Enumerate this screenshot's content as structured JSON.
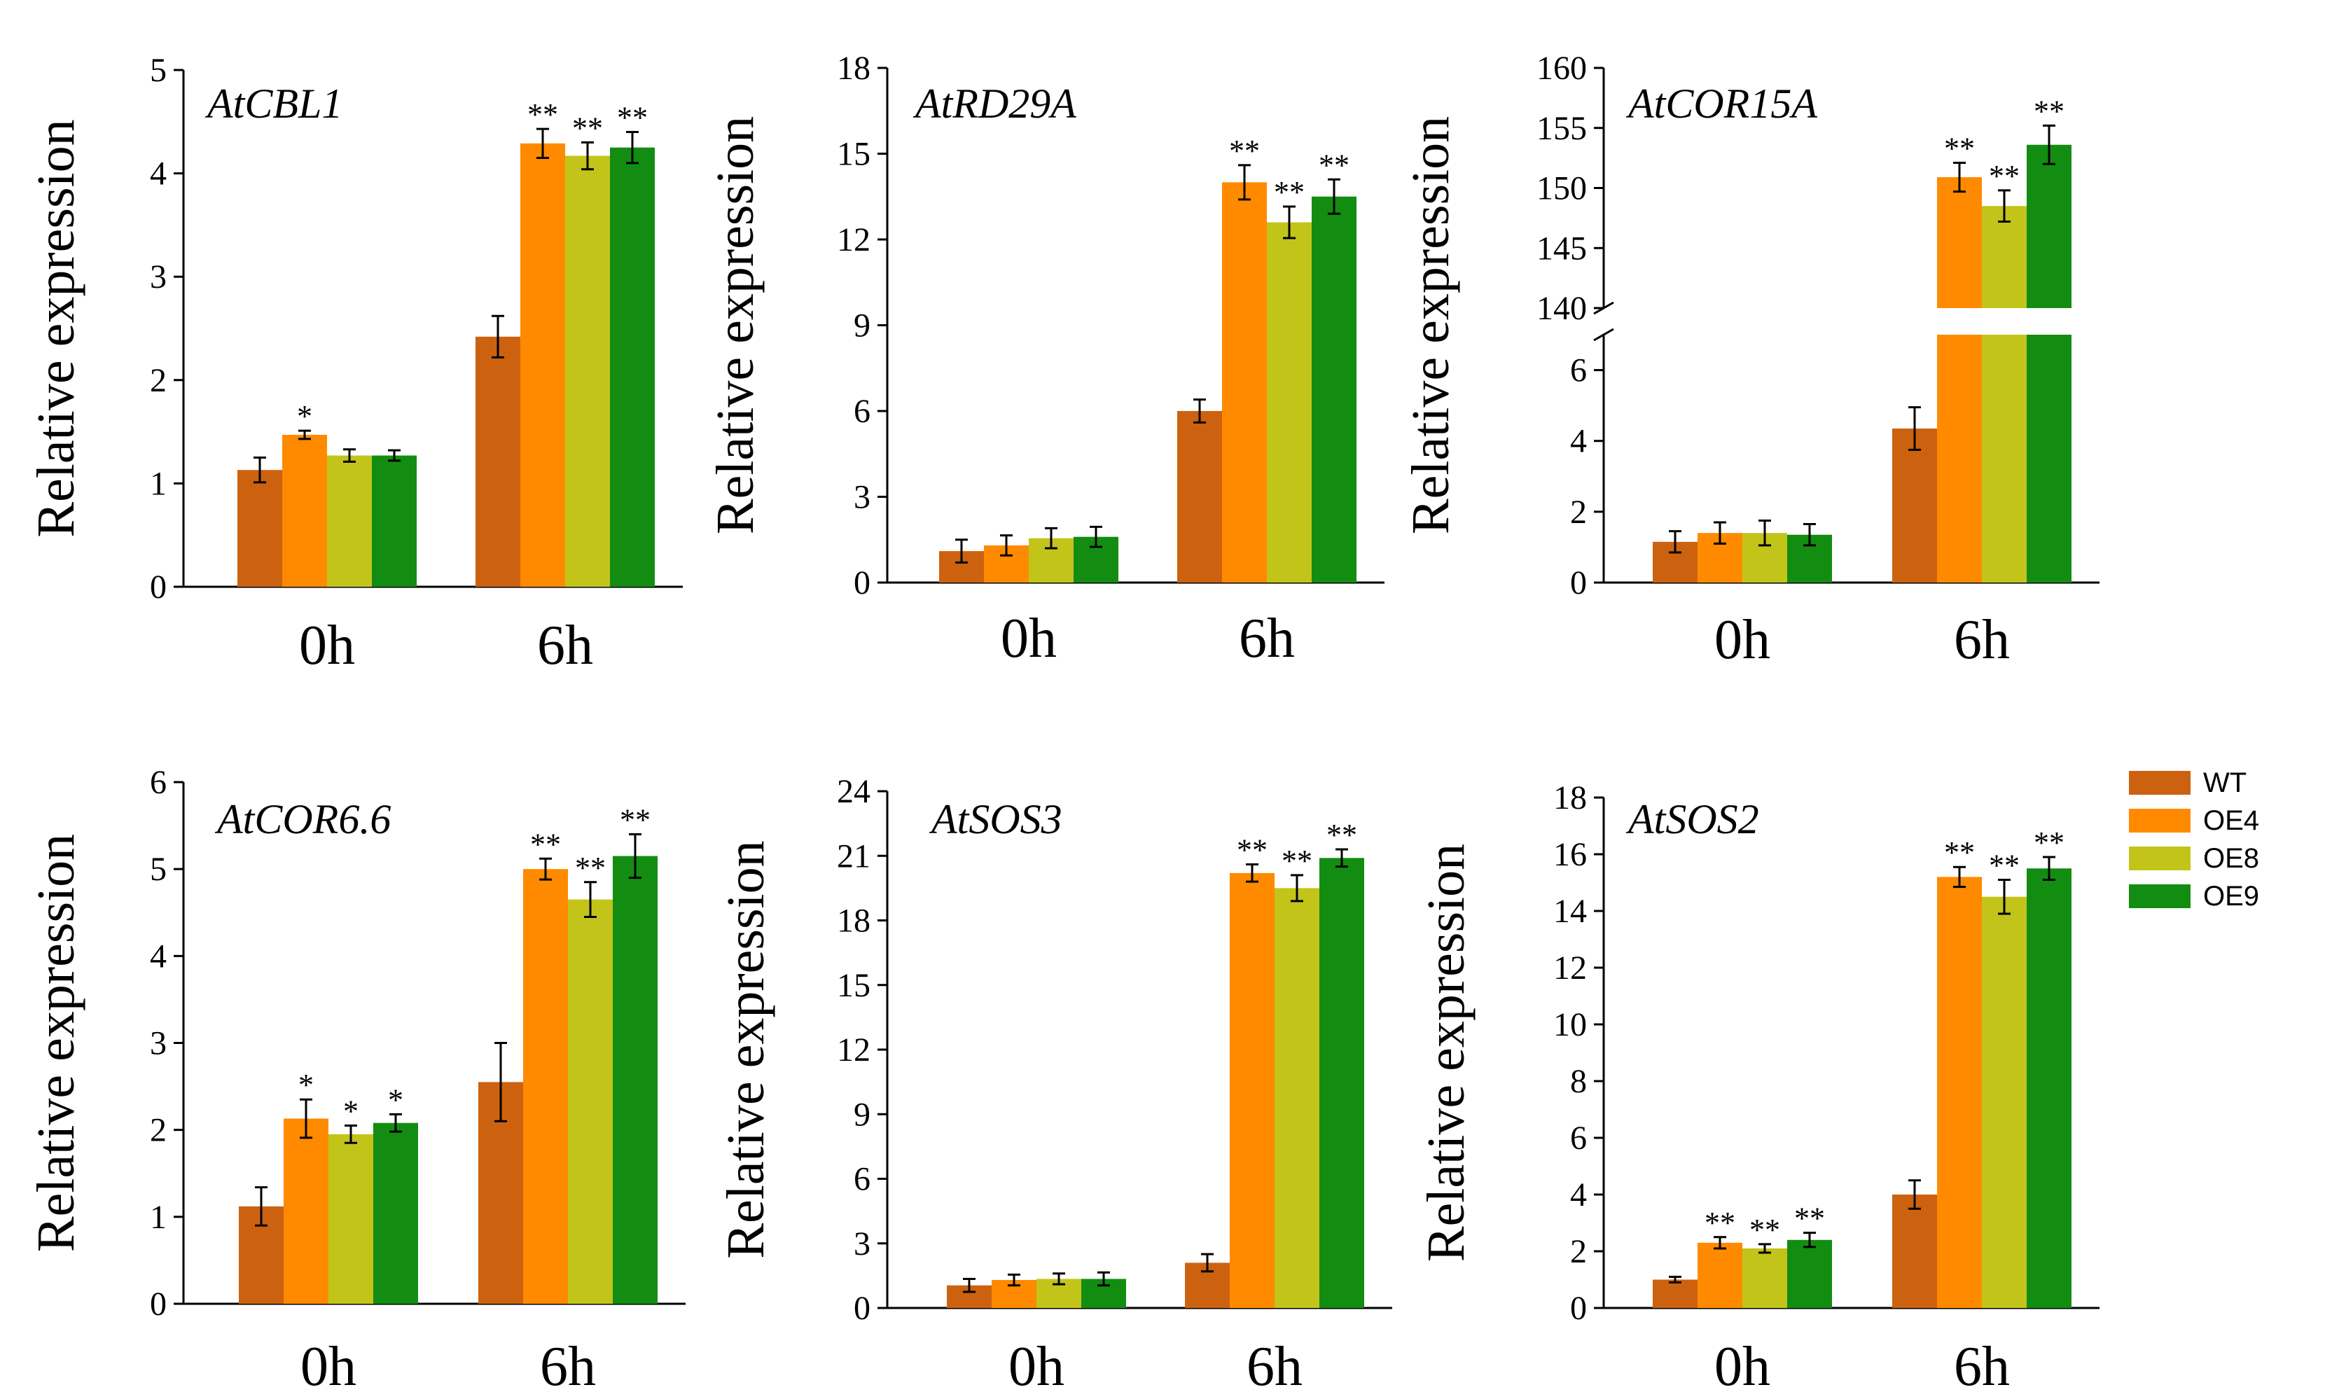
{
  "series_colors": {
    "WT": "#cc6210",
    "OE4": "#ff8a00",
    "OE8": "#c3c41a",
    "OE9": "#138c12"
  },
  "legend": [
    "WT",
    "OE4",
    "OE8",
    "OE9"
  ],
  "chart_data": [
    {
      "type": "bar",
      "title": "AtCBL1",
      "ylabel": "Relative expression",
      "categories": [
        "0h",
        "6h"
      ],
      "ylim": [
        0,
        5
      ],
      "yticks": [
        0,
        1,
        2,
        3,
        4,
        5
      ],
      "series": [
        {
          "name": "WT",
          "values": [
            1.13,
            2.42
          ],
          "errors": [
            0.12,
            0.2
          ]
        },
        {
          "name": "OE4",
          "values": [
            1.47,
            4.29
          ],
          "errors": [
            0.04,
            0.14
          ]
        },
        {
          "name": "OE8",
          "values": [
            1.27,
            4.17
          ],
          "errors": [
            0.06,
            0.13
          ]
        },
        {
          "name": "OE9",
          "values": [
            1.27,
            4.25
          ],
          "errors": [
            0.05,
            0.15
          ]
        }
      ],
      "significance": [
        [
          "",
          "*",
          "",
          ""
        ],
        [
          "",
          "**",
          "**",
          "**"
        ]
      ]
    },
    {
      "type": "bar",
      "title": "AtRD29A",
      "ylabel": "Relative expression",
      "categories": [
        "0h",
        "6h"
      ],
      "ylim": [
        0,
        18
      ],
      "yticks": [
        0,
        3,
        6,
        9,
        12,
        15,
        18
      ],
      "series": [
        {
          "name": "WT",
          "values": [
            1.1,
            6.0
          ],
          "errors": [
            0.4,
            0.4
          ]
        },
        {
          "name": "OE4",
          "values": [
            1.3,
            14.0
          ],
          "errors": [
            0.35,
            0.6
          ]
        },
        {
          "name": "OE8",
          "values": [
            1.55,
            12.6
          ],
          "errors": [
            0.35,
            0.55
          ]
        },
        {
          "name": "OE9",
          "values": [
            1.6,
            13.5
          ],
          "errors": [
            0.35,
            0.6
          ]
        }
      ],
      "significance": [
        [
          "",
          "",
          "",
          ""
        ],
        [
          "",
          "**",
          "**",
          "**"
        ]
      ]
    },
    {
      "type": "bar",
      "title": "AtCOR15A",
      "ylabel": "Relative expression",
      "categories": [
        "0h",
        "6h"
      ],
      "broken_axis": true,
      "ylim_lower": [
        0,
        7
      ],
      "yticks_lower": [
        0,
        2,
        4,
        6
      ],
      "ylim_upper": [
        140,
        160
      ],
      "yticks_upper": [
        140,
        145,
        150,
        155,
        160
      ],
      "series": [
        {
          "name": "WT",
          "values": [
            1.15,
            4.35
          ],
          "errors": [
            0.3,
            0.6
          ]
        },
        {
          "name": "OE4",
          "values": [
            1.4,
            150.9
          ],
          "errors": [
            0.3,
            1.2
          ]
        },
        {
          "name": "OE8",
          "values": [
            1.4,
            148.5
          ],
          "errors": [
            0.35,
            1.3
          ]
        },
        {
          "name": "OE9",
          "values": [
            1.35,
            153.6
          ],
          "errors": [
            0.3,
            1.6
          ]
        }
      ],
      "significance": [
        [
          "",
          "",
          "",
          ""
        ],
        [
          "",
          "**",
          "**",
          "**"
        ]
      ]
    },
    {
      "type": "bar",
      "title": "AtCOR6.6",
      "ylabel": "Relative expression",
      "categories": [
        "0h",
        "6h"
      ],
      "ylim": [
        0,
        6
      ],
      "yticks": [
        0,
        1,
        2,
        3,
        4,
        5,
        6
      ],
      "series": [
        {
          "name": "WT",
          "values": [
            1.12,
            2.55
          ],
          "errors": [
            0.22,
            0.45
          ]
        },
        {
          "name": "OE4",
          "values": [
            2.13,
            5.0
          ],
          "errors": [
            0.22,
            0.12
          ]
        },
        {
          "name": "OE8",
          "values": [
            1.95,
            4.65
          ],
          "errors": [
            0.1,
            0.2
          ]
        },
        {
          "name": "OE9",
          "values": [
            2.08,
            5.15
          ],
          "errors": [
            0.1,
            0.25
          ]
        }
      ],
      "significance": [
        [
          "",
          "*",
          "*",
          "*"
        ],
        [
          "",
          "**",
          "**",
          "**"
        ]
      ]
    },
    {
      "type": "bar",
      "title": "AtSOS3",
      "ylabel": "Relative expression",
      "categories": [
        "0h",
        "6h"
      ],
      "ylim": [
        0,
        24
      ],
      "yticks": [
        0,
        3,
        6,
        9,
        12,
        15,
        18,
        21,
        24
      ],
      "series": [
        {
          "name": "WT",
          "values": [
            1.05,
            2.1
          ],
          "errors": [
            0.3,
            0.4
          ]
        },
        {
          "name": "OE4",
          "values": [
            1.3,
            20.2
          ],
          "errors": [
            0.25,
            0.4
          ]
        },
        {
          "name": "OE8",
          "values": [
            1.35,
            19.5
          ],
          "errors": [
            0.25,
            0.6
          ]
        },
        {
          "name": "OE9",
          "values": [
            1.35,
            20.9
          ],
          "errors": [
            0.3,
            0.4
          ]
        }
      ],
      "significance": [
        [
          "",
          "",
          "",
          ""
        ],
        [
          "",
          "**",
          "**",
          "**"
        ]
      ]
    },
    {
      "type": "bar",
      "title": "AtSOS2",
      "ylabel": "Relative expression",
      "categories": [
        "0h",
        "6h"
      ],
      "ylim": [
        0,
        18
      ],
      "yticks": [
        0,
        2,
        4,
        6,
        8,
        10,
        12,
        14,
        16,
        18
      ],
      "series": [
        {
          "name": "WT",
          "values": [
            1.0,
            4.0
          ],
          "errors": [
            0.1,
            0.5
          ]
        },
        {
          "name": "OE4",
          "values": [
            2.3,
            15.2
          ],
          "errors": [
            0.2,
            0.35
          ]
        },
        {
          "name": "OE8",
          "values": [
            2.1,
            14.5
          ],
          "errors": [
            0.15,
            0.6
          ]
        },
        {
          "name": "OE9",
          "values": [
            2.4,
            15.5
          ],
          "errors": [
            0.25,
            0.4
          ]
        }
      ],
      "significance": [
        [
          "",
          "**",
          "**",
          "**"
        ],
        [
          "",
          "**",
          "**",
          "**"
        ]
      ]
    }
  ]
}
